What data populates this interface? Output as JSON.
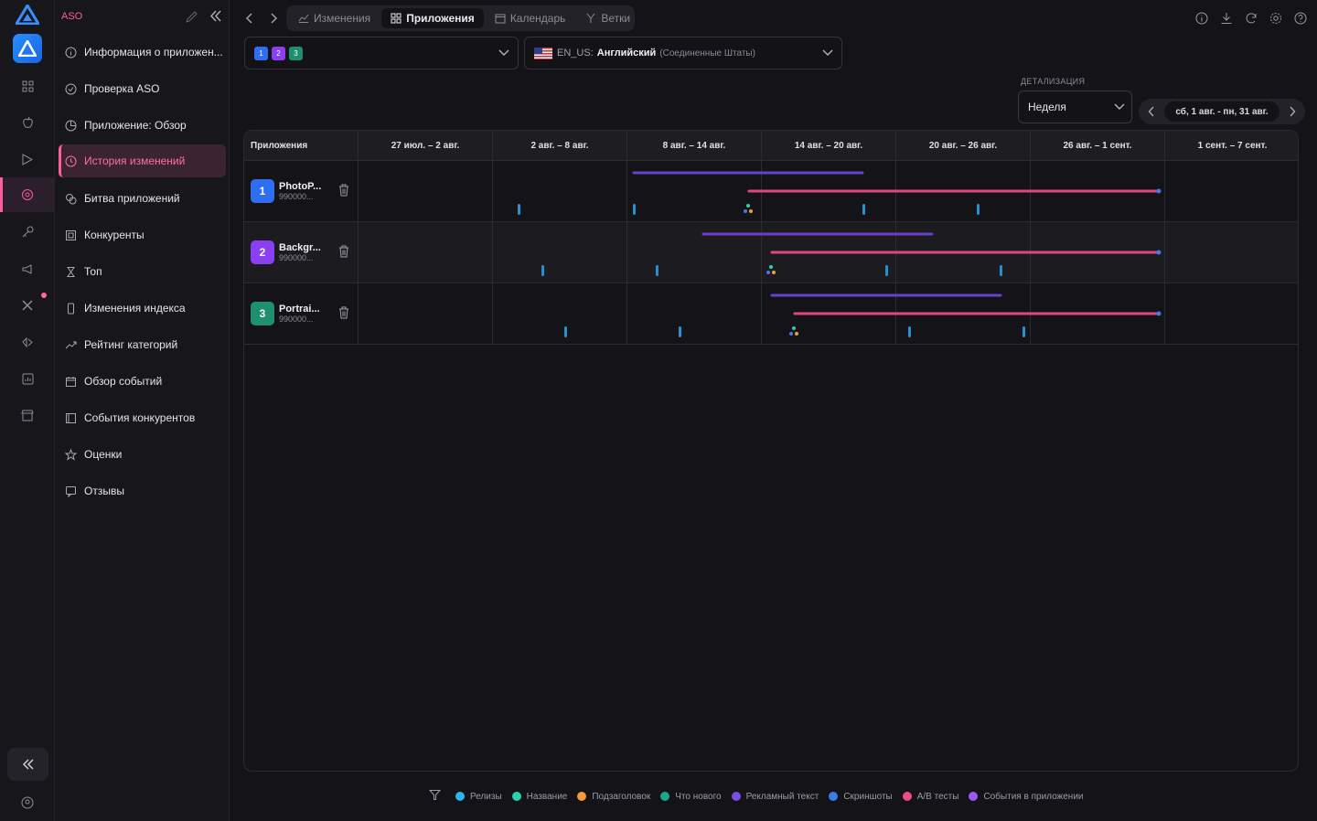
{
  "sidebar": {
    "title": "ASO",
    "items": [
      {
        "label": "Информация о приложен...",
        "icon": "info-icon"
      },
      {
        "label": "Проверка ASO",
        "icon": "check-circle-icon"
      },
      {
        "label": "Приложение: Обзор",
        "icon": "pie-chart-icon"
      },
      {
        "label": "История изменений",
        "icon": "history-icon",
        "active": true
      },
      {
        "label": "Битва приложений",
        "icon": "battle-icon"
      },
      {
        "label": "Конкуренты",
        "icon": "competitors-icon"
      },
      {
        "label": "Топ",
        "icon": "trophy-icon"
      },
      {
        "label": "Изменения индекса",
        "icon": "phone-icon"
      },
      {
        "label": "Рейтинг категорий",
        "icon": "trend-icon"
      },
      {
        "label": "Обзор событий",
        "icon": "calendar-icon"
      },
      {
        "label": "События конкурентов",
        "icon": "events-icon"
      },
      {
        "label": "Оценки",
        "icon": "star-icon"
      },
      {
        "label": "Отзывы",
        "icon": "reviews-icon"
      }
    ]
  },
  "tabs": [
    {
      "label": "Изменения",
      "active": false
    },
    {
      "label": "Приложения",
      "active": true
    },
    {
      "label": "Календарь",
      "active": false
    },
    {
      "label": "Ветки",
      "active": false
    }
  ],
  "app_selector": {
    "badges": [
      "1",
      "2",
      "3"
    ]
  },
  "locale_selector": {
    "code": "EN_US:",
    "language": "Английский",
    "country": "(Соединенные Штаты)"
  },
  "detail": {
    "label": "ДЕТАЛИЗАЦИЯ",
    "value": "Неделя"
  },
  "date_range": "сб, 1 авг. - пн, 31 авг.",
  "grid": {
    "header_first": "Приложения",
    "weeks": [
      "27 июл. – 2 авг.",
      "2 авг. – 8 авг.",
      "8 авг. – 14 авг.",
      "14 авг. – 20 авг.",
      "20 авг. – 26 авг.",
      "26 авг. – 1 сент.",
      "1 сент. – 7 сент."
    ],
    "apps": [
      {
        "num": "1",
        "name": "PhotoP...",
        "id": "990000...",
        "color": "#2f6df2"
      },
      {
        "num": "2",
        "name": "Backgr...",
        "id": "990000...",
        "color": "#8a3ff0"
      },
      {
        "num": "3",
        "name": "Portrai...",
        "id": "990000...",
        "color": "#1e8f6f"
      }
    ]
  },
  "legend": [
    {
      "label": "Релизы",
      "color": "#2bb6f0"
    },
    {
      "label": "Название",
      "color": "#2ad1b0"
    },
    {
      "label": "Подзаголовок",
      "color": "#f59a3c"
    },
    {
      "label": "Что нового",
      "color": "#1aa88a"
    },
    {
      "label": "Рекламный текст",
      "color": "#7b4de0"
    },
    {
      "label": "Скриншоты",
      "color": "#3d7be8"
    },
    {
      "label": "A/B тесты",
      "color": "#f04b86"
    },
    {
      "label": "События в приложении",
      "color": "#9b59f0"
    }
  ]
}
